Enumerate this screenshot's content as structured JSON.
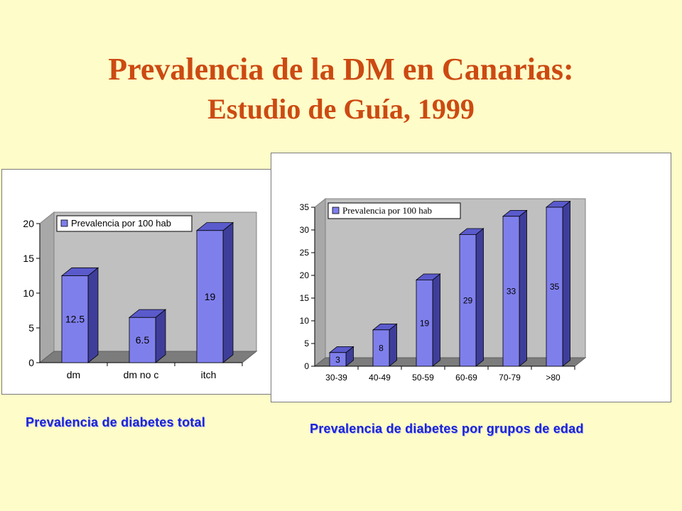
{
  "slide": {
    "title_line1": "Prevalencia de la DM en Canarias:",
    "title_line2": "Estudio de Guía, 1999"
  },
  "captions": {
    "left": "Prevalencia de diabetes total",
    "right": "Prevalencia de diabetes por grupos de edad"
  },
  "colors": {
    "background": "#fefcc8",
    "title": "#cc4a12",
    "caption": "#1a24d8",
    "bar_front": "#7f7fec",
    "bar_side": "#3e3e9a",
    "bar_top": "#5a5acc",
    "wall": "#c0c0c0",
    "floor": "#7c7c7c"
  },
  "chart_data": [
    {
      "type": "bar",
      "style": "3d",
      "categories": [
        "dm",
        "dm no c",
        "itch"
      ],
      "series": [
        {
          "name": "Prevalencia por 100 hab",
          "values": [
            12.5,
            6.5,
            19
          ]
        }
      ],
      "data_labels": [
        "12.5",
        "6.5",
        "19"
      ],
      "ylim": [
        0,
        20
      ],
      "yticks": [
        0,
        5,
        10,
        15,
        20
      ],
      "legend": "top-left",
      "grid": false
    },
    {
      "type": "bar",
      "style": "3d",
      "categories": [
        "30-39",
        "40-49",
        "50-59",
        "60-69",
        "70-79",
        ">80"
      ],
      "series": [
        {
          "name": "Prevalencia por 100 hab",
          "values": [
            3,
            8,
            19,
            29,
            33,
            35
          ]
        }
      ],
      "data_labels": [
        "3",
        "8",
        "19",
        "29",
        "33",
        "35"
      ],
      "ylim": [
        0,
        35
      ],
      "yticks": [
        0,
        5,
        10,
        15,
        20,
        25,
        30,
        35
      ],
      "legend": "top-left",
      "grid": false
    }
  ]
}
